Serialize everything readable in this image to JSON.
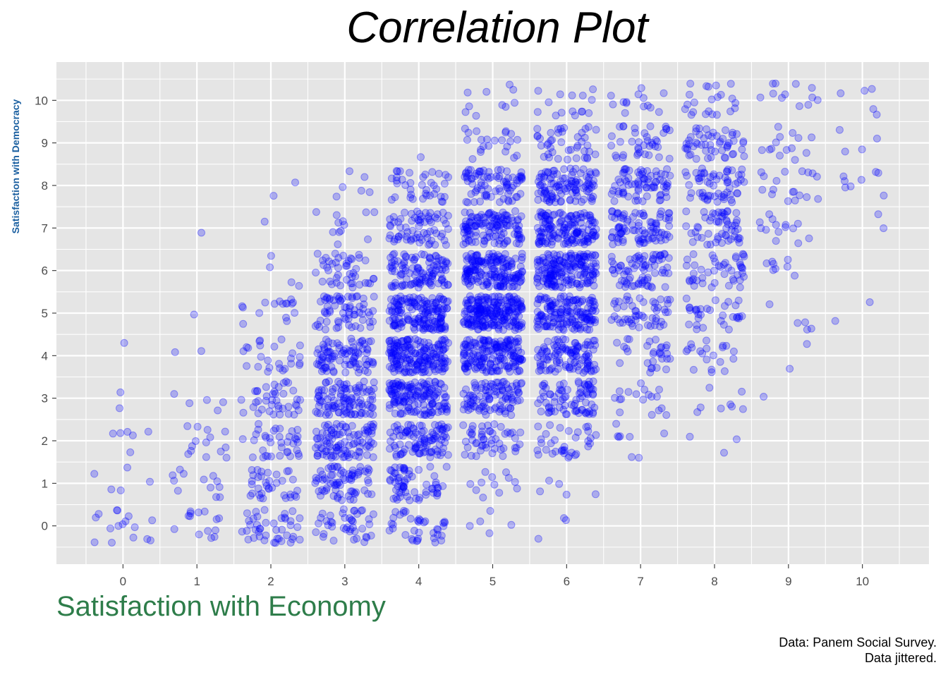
{
  "chart_data": {
    "type": "scatter",
    "title": "Correlation Plot",
    "xlabel": "Satisfaction with Economy",
    "ylabel": "Satisfaction with Democracy",
    "caption": [
      "Data: Panem Social Survey.",
      "Data jittered."
    ],
    "x_ticks": [
      "0",
      "1",
      "2",
      "3",
      "4",
      "5",
      "6",
      "7",
      "8",
      "9",
      "10"
    ],
    "y_ticks": [
      "0",
      "1",
      "2",
      "3",
      "4",
      "5",
      "6",
      "7",
      "8",
      "9",
      "10"
    ],
    "xlim": [
      -0.9,
      10.9
    ],
    "ylim": [
      -0.9,
      10.9
    ],
    "jitter": 0.4,
    "point_color": "#0000ff",
    "point_opacity": 0.25,
    "panel_color": "#e5e5e5",
    "grid_color": "#ffffff",
    "grid": true,
    "legend": "none",
    "counts_by_x": [
      [
        16,
        5,
        6,
        2,
        1,
        0,
        0,
        0,
        0,
        0,
        0
      ],
      [
        14,
        12,
        14,
        5,
        2,
        1,
        0,
        1,
        0,
        0,
        0
      ],
      [
        42,
        35,
        37,
        40,
        25,
        16,
        4,
        1,
        2,
        0,
        0
      ],
      [
        42,
        72,
        100,
        106,
        92,
        67,
        45,
        12,
        6,
        0,
        0
      ],
      [
        37,
        63,
        100,
        150,
        185,
        165,
        110,
        70,
        38,
        1,
        0
      ],
      [
        5,
        12,
        50,
        100,
        175,
        225,
        175,
        130,
        82,
        22,
        10
      ],
      [
        3,
        5,
        35,
        80,
        110,
        155,
        180,
        150,
        110,
        42,
        15
      ],
      [
        0,
        0,
        8,
        18,
        30,
        52,
        75,
        90,
        75,
        40,
        14
      ],
      [
        0,
        0,
        3,
        8,
        20,
        32,
        46,
        55,
        60,
        52,
        22
      ],
      [
        0,
        0,
        0,
        1,
        2,
        5,
        8,
        14,
        18,
        14,
        12
      ],
      [
        0,
        0,
        0,
        0,
        0,
        2,
        0,
        2,
        8,
        4,
        5
      ]
    ]
  }
}
